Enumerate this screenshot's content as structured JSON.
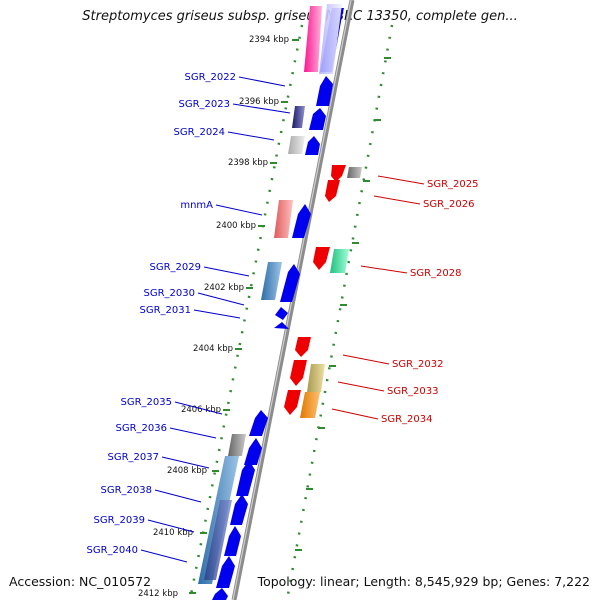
{
  "title": "Streptomyces griseus subsp. griseus NBRC 13350, complete gen...",
  "footer": {
    "accession": "Accession: NC_010572",
    "stats": "Topology: linear; Length: 8,545,929 bp; Genes: 7,222"
  },
  "colors": {
    "backbone": "#8c8c8c",
    "forward_label": "#0000cc",
    "reverse_label": "#cc0000",
    "ruler_dots": "#2e8b2e",
    "tick_text": "#111111"
  },
  "kbp_ticks": [
    "2394 kbp",
    "2396 kbp",
    "2398 kbp",
    "2400 kbp",
    "2402 kbp",
    "2404 kbp",
    "2406 kbp",
    "2408 kbp",
    "2410 kbp",
    "2412 kbp"
  ],
  "forward_genes": [
    {
      "label": "SGR_2022",
      "icon": "forward-arrow-blue"
    },
    {
      "label": "SGR_2023",
      "icon": "forward-arrow-blue"
    },
    {
      "label": "SGR_2024",
      "icon": "forward-arrow-blue"
    },
    {
      "label": "mnmA",
      "icon": "forward-arrow-blue"
    },
    {
      "label": "SGR_2029",
      "icon": "forward-arrow-blue"
    },
    {
      "label": "SGR_2030",
      "icon": "forward-arrow-blue"
    },
    {
      "label": "SGR_2031",
      "icon": "forward-arrow-blue"
    },
    {
      "label": "SGR_2035",
      "icon": "forward-arrow-blue"
    },
    {
      "label": "SGR_2036",
      "icon": "forward-arrow-blue"
    },
    {
      "label": "SGR_2037",
      "icon": "forward-arrow-blue"
    },
    {
      "label": "SGR_2038",
      "icon": "forward-arrow-blue"
    },
    {
      "label": "SGR_2039",
      "icon": "forward-arrow-blue"
    },
    {
      "label": "SGR_2040",
      "icon": "forward-arrow-blue"
    }
  ],
  "reverse_genes": [
    {
      "label": "SGR_2025",
      "icon": "reverse-arrow-red"
    },
    {
      "label": "SGR_2026",
      "icon": "reverse-arrow-red"
    },
    {
      "label": "SGR_2028",
      "icon": "reverse-arrow-red"
    },
    {
      "label": "SGR_2032",
      "icon": "reverse-arrow-red"
    },
    {
      "label": "SGR_2033",
      "icon": "reverse-arrow-red"
    },
    {
      "label": "SGR_2034",
      "icon": "reverse-arrow-red"
    }
  ]
}
